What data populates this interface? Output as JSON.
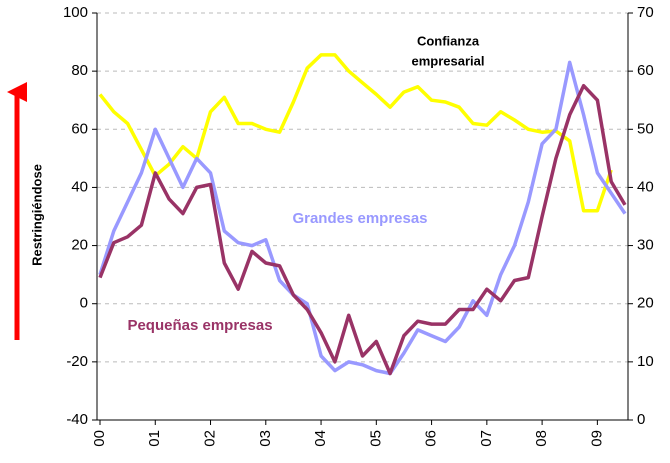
{
  "chart_data": {
    "type": "line",
    "categories": [
      "00",
      null,
      null,
      null,
      "01",
      null,
      null,
      null,
      "02",
      null,
      null,
      null,
      "03",
      null,
      null,
      null,
      "04",
      null,
      null,
      null,
      "05",
      null,
      null,
      null,
      "06",
      null,
      null,
      null,
      "07",
      null,
      null,
      null,
      "08",
      null,
      null,
      null,
      "09",
      null,
      null
    ],
    "series": [
      {
        "name": "Grandes empresas",
        "color": "#9999ff",
        "axis": "y",
        "values": [
          10,
          25,
          35,
          45,
          60,
          50,
          40,
          50,
          45,
          25,
          21,
          20,
          22,
          8,
          3,
          0,
          -18,
          -23,
          -20,
          -21,
          -23,
          -24,
          -17,
          -9,
          -11,
          -13,
          -8,
          1,
          -4,
          10,
          20,
          35,
          55,
          60,
          83,
          65,
          45,
          38,
          31
        ]
      },
      {
        "name": "Pequeñas empresas",
        "color": "#993366",
        "axis": "y",
        "values": [
          9,
          21,
          23,
          27,
          45,
          36,
          31,
          40,
          41,
          14,
          5,
          18,
          14,
          13,
          3,
          -2,
          -10,
          -20,
          -4,
          -18,
          -13,
          -24,
          -11,
          -6,
          -7,
          -7,
          -2,
          -2,
          5,
          1,
          8,
          9,
          30,
          50,
          65,
          75,
          70,
          42,
          34
        ]
      },
      {
        "name": "Confianza empresarial",
        "color": "#ffff00",
        "axis": "y2",
        "values": [
          56,
          53,
          51,
          46.5,
          42,
          44,
          47,
          45,
          53,
          55.5,
          51,
          51,
          50,
          49.5,
          54.7,
          60.5,
          62.8,
          62.8,
          60,
          58,
          56,
          53.8,
          56.4,
          57.3,
          55,
          54.7,
          53.8,
          51,
          50.7,
          53,
          51.6,
          50,
          49.5,
          49.7,
          48,
          36,
          36,
          43,
          null
        ]
      }
    ],
    "ylim": [
      -40,
      100
    ],
    "yticks": [
      -40,
      -20,
      0,
      20,
      40,
      60,
      80,
      100
    ],
    "y2lim": [
      0,
      70
    ],
    "y2ticks": [
      0,
      10,
      20,
      30,
      40,
      50,
      60,
      70
    ],
    "ylabel": "Restringiéndose",
    "grid": true,
    "annotations": {
      "confianza": [
        "Confianza",
        "empresarial"
      ],
      "grandes": "Grandes empresas",
      "pequenas": "Pequeñas empresas"
    }
  }
}
